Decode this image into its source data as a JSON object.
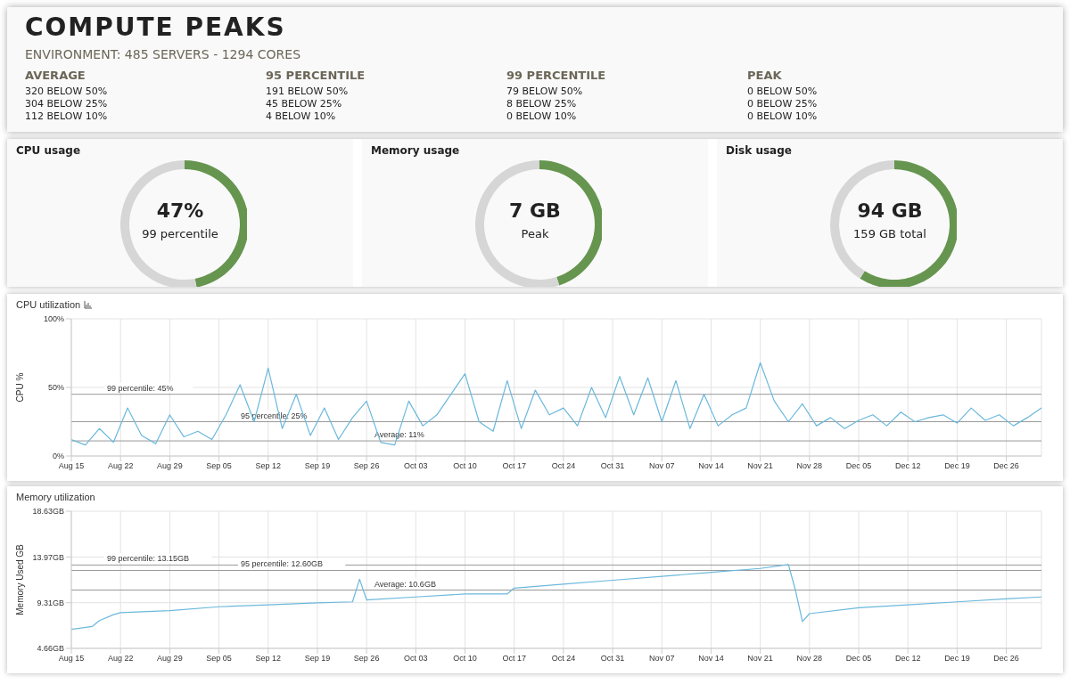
{
  "chart_data": [
    {
      "type": "other",
      "title": "COMPUTE PEAKS",
      "subtitle": "ENVIRONMENT: 485 SERVERS - 1294 CORES",
      "annotations": [
        "AVERAGE",
        "320 BELOW 50%",
        "304 BELOW 25%",
        "112 BELOW 10%",
        "95 PERCENTILE",
        "191 BELOW 50%",
        "45 BELOW 25%",
        "4 BELOW 10%",
        "99 PERCENTILE",
        "79 BELOW 50%",
        "8 BELOW 25%",
        "0 BELOW 10%",
        "PEAK",
        "0 BELOW 50%",
        "0 BELOW 25%",
        "0 BELOW 10%"
      ]
    },
    {
      "type": "donut",
      "title": "CPU usage",
      "categories": [
        null,
        null
      ],
      "values": [
        47,
        53
      ],
      "colors": [
        "#66954f",
        "#d6d6d6"
      ],
      "annotations": [
        "47%",
        "99 percentile"
      ]
    },
    {
      "type": "donut",
      "title": "Memory usage",
      "categories": [
        null,
        null
      ],
      "values": [
        45,
        55
      ],
      "colors": [
        "#66954f",
        "#d6d6d6"
      ],
      "annotations": [
        "7 GB",
        "Peak"
      ]
    },
    {
      "type": "donut",
      "title": "Disk usage",
      "categories": [
        null,
        null
      ],
      "values": [
        59,
        41
      ],
      "colors": [
        "#66954f",
        "#d6d6d6"
      ],
      "annotations": [
        "94 GB",
        "159 GB total"
      ]
    },
    {
      "type": "line",
      "title": "CPU utilization",
      "ylabel": "CPU %",
      "color": "#6bb8dc",
      "grid": true,
      "marker": "none",
      "x": [
        "--08-15",
        "--08-17",
        "--08-19",
        "--08-21",
        "--08-23",
        "--08-25",
        "--08-27",
        "--08-29",
        "--08-31",
        "--09-02",
        "--09-04",
        "--09-06",
        "--09-08",
        "--09-10",
        "--09-12",
        "--09-14",
        "--09-16",
        "--09-18",
        "--09-20",
        "--09-22",
        "--09-24",
        "--09-26",
        "--09-28",
        "--09-30",
        "--10-02",
        "--10-04",
        "--10-06",
        "--10-08",
        "--10-10",
        "--10-12",
        "--10-14",
        "--10-16",
        "--10-18",
        "--10-20",
        "--10-22",
        "--10-24",
        "--10-26",
        "--10-28",
        "--10-30",
        "--11-01",
        "--11-03",
        "--11-05",
        "--11-07",
        "--11-09",
        "--11-11",
        "--11-13",
        "--11-15",
        "--11-17",
        "--11-19",
        "--11-21",
        "--11-23",
        "--11-25",
        "--11-27",
        "--11-29",
        "--12-01",
        "--12-03",
        "--12-05",
        "--12-07",
        "--12-09",
        "--12-11",
        "--12-13",
        "--12-15",
        "--12-17",
        "--12-19",
        "--12-21",
        "--12-23",
        "--12-25",
        "--12-27",
        "--12-29",
        "--12-31"
      ],
      "values": [
        12,
        8,
        20,
        10,
        35,
        15,
        9,
        30,
        14,
        18,
        12,
        30,
        52,
        25,
        64,
        20,
        45,
        15,
        35,
        12,
        28,
        40,
        10,
        8,
        40,
        22,
        30,
        45,
        60,
        25,
        18,
        55,
        20,
        48,
        30,
        35,
        22,
        50,
        28,
        58,
        30,
        57,
        25,
        55,
        20,
        45,
        22,
        30,
        35,
        68,
        40,
        25,
        38,
        22,
        28,
        20,
        26,
        30,
        22,
        32,
        25,
        28,
        30,
        24,
        35,
        26,
        30,
        22,
        28,
        35
      ],
      "xlim": [
        "--08-15",
        "--12-31"
      ],
      "xticks": [
        {
          "value": "--08-15",
          "label": "Aug 15"
        },
        {
          "value": "--08-22",
          "label": "Aug 22"
        },
        {
          "value": "--08-29",
          "label": "Aug 29"
        },
        {
          "value": "--09-05",
          "label": "Sep 05"
        },
        {
          "value": "--09-12",
          "label": "Sep 12"
        },
        {
          "value": "--09-19",
          "label": "Sep 19"
        },
        {
          "value": "--09-26",
          "label": "Sep 26"
        },
        {
          "value": "--10-03",
          "label": "Oct 03"
        },
        {
          "value": "--10-10",
          "label": "Oct 10"
        },
        {
          "value": "--10-17",
          "label": "Oct 17"
        },
        {
          "value": "--10-24",
          "label": "Oct 24"
        },
        {
          "value": "--10-31",
          "label": "Oct 31"
        },
        {
          "value": "--11-07",
          "label": "Nov 07"
        },
        {
          "value": "--11-14",
          "label": "Nov 14"
        },
        {
          "value": "--11-21",
          "label": "Nov 21"
        },
        {
          "value": "--11-28",
          "label": "Nov 28"
        },
        {
          "value": "--12-05",
          "label": "Dec 05"
        },
        {
          "value": "--12-12",
          "label": "Dec 12"
        },
        {
          "value": "--12-19",
          "label": "Dec 19"
        },
        {
          "value": "--12-26",
          "label": "Dec 26"
        }
      ],
      "ylim": [
        0,
        100
      ],
      "yticks": [
        {
          "value": 0,
          "label": "0%"
        },
        {
          "value": 50,
          "label": "50%"
        },
        {
          "value": 100,
          "label": "100%"
        }
      ],
      "ref_lines": [
        {
          "axis": "y",
          "value": 45,
          "label": "99 percentile: 45%",
          "color": "#999999"
        },
        {
          "axis": "y",
          "value": 25,
          "label": "95 percentile: 25%",
          "color": "#999999"
        },
        {
          "axis": "y",
          "value": 11,
          "label": "Average: 11%",
          "color": "#999999"
        }
      ]
    },
    {
      "type": "line",
      "title": "Memory utilization",
      "ylabel": "Memory Used GB",
      "color": "#6bb8dc",
      "grid": true,
      "marker": "none",
      "x": [
        "--08-15",
        "--08-18",
        "--08-19",
        "--08-21",
        "--08-22",
        "--08-29",
        "--09-05",
        "--09-12",
        "--09-19",
        "--09-24",
        "--09-25",
        "--09-26",
        "--10-03",
        "--10-10",
        "--10-16",
        "--10-17",
        "--10-24",
        "--10-31",
        "--11-07",
        "--11-14",
        "--11-21",
        "--11-25",
        "--11-26",
        "--11-27",
        "--11-28",
        "--12-05",
        "--12-12",
        "--12-19",
        "--12-26",
        "--12-31"
      ],
      "values": [
        6.6,
        6.9,
        7.5,
        8.1,
        8.3,
        8.5,
        8.9,
        9.1,
        9.3,
        9.4,
        11.7,
        9.6,
        9.9,
        10.2,
        10.2,
        10.8,
        11.2,
        11.6,
        12.0,
        12.4,
        12.8,
        13.2,
        10.6,
        7.4,
        8.2,
        8.8,
        9.1,
        9.4,
        9.7,
        9.9
      ],
      "xlim": [
        "--08-15",
        "--12-31"
      ],
      "xticks": [
        {
          "value": "--08-15",
          "label": "Aug 15"
        },
        {
          "value": "--08-22",
          "label": "Aug 22"
        },
        {
          "value": "--08-29",
          "label": "Aug 29"
        },
        {
          "value": "--09-05",
          "label": "Sep 05"
        },
        {
          "value": "--09-12",
          "label": "Sep 12"
        },
        {
          "value": "--09-19",
          "label": "Sep 19"
        },
        {
          "value": "--09-26",
          "label": "Sep 26"
        },
        {
          "value": "--10-03",
          "label": "Oct 03"
        },
        {
          "value": "--10-10",
          "label": "Oct 10"
        },
        {
          "value": "--10-17",
          "label": "Oct 17"
        },
        {
          "value": "--10-24",
          "label": "Oct 24"
        },
        {
          "value": "--10-31",
          "label": "Oct 31"
        },
        {
          "value": "--11-07",
          "label": "Nov 07"
        },
        {
          "value": "--11-14",
          "label": "Nov 14"
        },
        {
          "value": "--11-21",
          "label": "Nov 21"
        },
        {
          "value": "--11-28",
          "label": "Nov 28"
        },
        {
          "value": "--12-05",
          "label": "Dec 05"
        },
        {
          "value": "--12-12",
          "label": "Dec 12"
        },
        {
          "value": "--12-19",
          "label": "Dec 19"
        },
        {
          "value": "--12-26",
          "label": "Dec 26"
        }
      ],
      "ylim": [
        4.66,
        18.63
      ],
      "yticks": [
        {
          "value": 4.66,
          "label": "4.66GB"
        },
        {
          "value": 9.31,
          "label": "9.31GB"
        },
        {
          "value": 13.97,
          "label": "13.97GB"
        },
        {
          "value": 18.63,
          "label": "18.63GB"
        }
      ],
      "ref_lines": [
        {
          "axis": "y",
          "value": 13.15,
          "label": "99 percentile: 13.15GB",
          "color": "#999999"
        },
        {
          "axis": "y",
          "value": 12.6,
          "label": "95 percentile: 12.60GB",
          "color": "#999999"
        },
        {
          "axis": "y",
          "value": 10.6,
          "label": "Average: 10.6GB",
          "color": "#999999"
        }
      ]
    }
  ]
}
